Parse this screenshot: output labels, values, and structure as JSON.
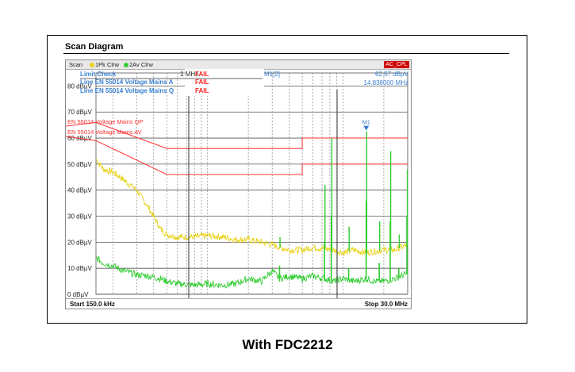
{
  "heading": "Scan Diagram",
  "caption": "With FDC2212",
  "topbar": {
    "scan": "Scan",
    "trace1": "1Pk Clrw",
    "trace2": "2Av Clrw",
    "badge": "AC_CPL"
  },
  "limit_check": {
    "title": "Limit Check",
    "row1_name": "Line EN 55014 Voltage Mains A",
    "row2_name": "Line EN 55014 Voltage Mains Q",
    "status_header": "FAIL",
    "row1_status": "FAIL",
    "row2_status": "FAIL"
  },
  "marker": {
    "label": "M1[2]",
    "level": "62.57 dBµV",
    "freq": "14.838000 MHz",
    "tag": "M1",
    "x_mhz": 14.838,
    "y": 62.57
  },
  "freq_tag": "1 MHz",
  "start_label": "Start 150.0 kHz",
  "stop_label": "Stop 30.0 MHz",
  "colors": {
    "qp_trace": "#e8d21a",
    "av_trace": "#33cc33",
    "limit": "#ff3030",
    "grid": "#555555",
    "info": "#3a7fd0",
    "fail": "#ff2020"
  },
  "chart_data": {
    "type": "line",
    "xscale": "log",
    "xlim_mhz": [
      0.15,
      30
    ],
    "ylim": [
      0,
      85
    ],
    "ylabel_ticks": [
      "0 dBµV",
      "10 dBµV",
      "20 dBµV",
      "30 dBµV",
      "40 dBµV",
      "50 dBµV",
      "60 dBµV",
      "70 dBµV",
      "80 dBµV"
    ],
    "grid": true,
    "limit_lines": [
      {
        "name": "EN 55014 Voltage Mains QP",
        "x_mhz": [
          0.15,
          0.5,
          5,
          5,
          30
        ],
        "y": [
          66,
          56,
          56,
          60,
          60
        ]
      },
      {
        "name": "EN 55014 Voltage Mains AV",
        "x_mhz": [
          0.15,
          0.5,
          5,
          5,
          30
        ],
        "y": [
          59,
          46,
          46,
          50,
          50
        ]
      }
    ],
    "series": [
      {
        "trace": "1Pk Clrw",
        "x_mhz": [
          0.15,
          0.17,
          0.2,
          0.24,
          0.3,
          0.37,
          0.45,
          0.5,
          0.6,
          0.8,
          1.0,
          1.3,
          1.6,
          2.0,
          2.5,
          3.0,
          3.4,
          4.0,
          5.0,
          6.0,
          7.3,
          8.5,
          10,
          12,
          14.8,
          17,
          20,
          24,
          30
        ],
        "y": [
          52,
          48,
          47,
          44,
          40,
          33,
          25,
          23,
          22,
          22,
          22.5,
          22,
          21,
          21,
          20,
          19,
          18,
          17,
          17,
          18,
          17.5,
          17,
          16,
          17,
          16,
          16.5,
          17,
          17,
          19
        ]
      },
      {
        "trace": "2Av Clrw",
        "x_mhz": [
          0.15,
          0.17,
          0.2,
          0.24,
          0.3,
          0.37,
          0.45,
          0.5,
          0.6,
          0.8,
          1.0,
          1.3,
          1.6,
          2.0,
          2.5,
          3.0,
          3.4,
          4.0,
          5.0,
          6.0,
          7.3,
          8.5,
          10,
          12,
          14.8,
          17,
          20,
          24,
          30
        ],
        "y": [
          14,
          12,
          11,
          9,
          7.5,
          7,
          6,
          5,
          4,
          3.5,
          4,
          3.5,
          4,
          6,
          5,
          9,
          6,
          7,
          6,
          7,
          6,
          5,
          6,
          5,
          6,
          5,
          5,
          6,
          8
        ]
      }
    ],
    "peaks": [
      {
        "x_mhz": 3.4,
        "y1": 22,
        "y2": 11
      },
      {
        "x_mhz": 7.3,
        "y1": 42,
        "y2": 20
      },
      {
        "x_mhz": 8.2,
        "y1": 60,
        "y2": 30
      },
      {
        "x_mhz": 11.0,
        "y1": 26,
        "y2": 10
      },
      {
        "x_mhz": 14.838,
        "y1": 62.57,
        "y2": 36
      },
      {
        "x_mhz": 18.5,
        "y1": 28,
        "y2": 12
      },
      {
        "x_mhz": 22.3,
        "y1": 55,
        "y2": 28
      },
      {
        "x_mhz": 25.8,
        "y1": 23,
        "y2": 10
      },
      {
        "x_mhz": 29.6,
        "y1": 48,
        "y2": 30
      }
    ]
  }
}
